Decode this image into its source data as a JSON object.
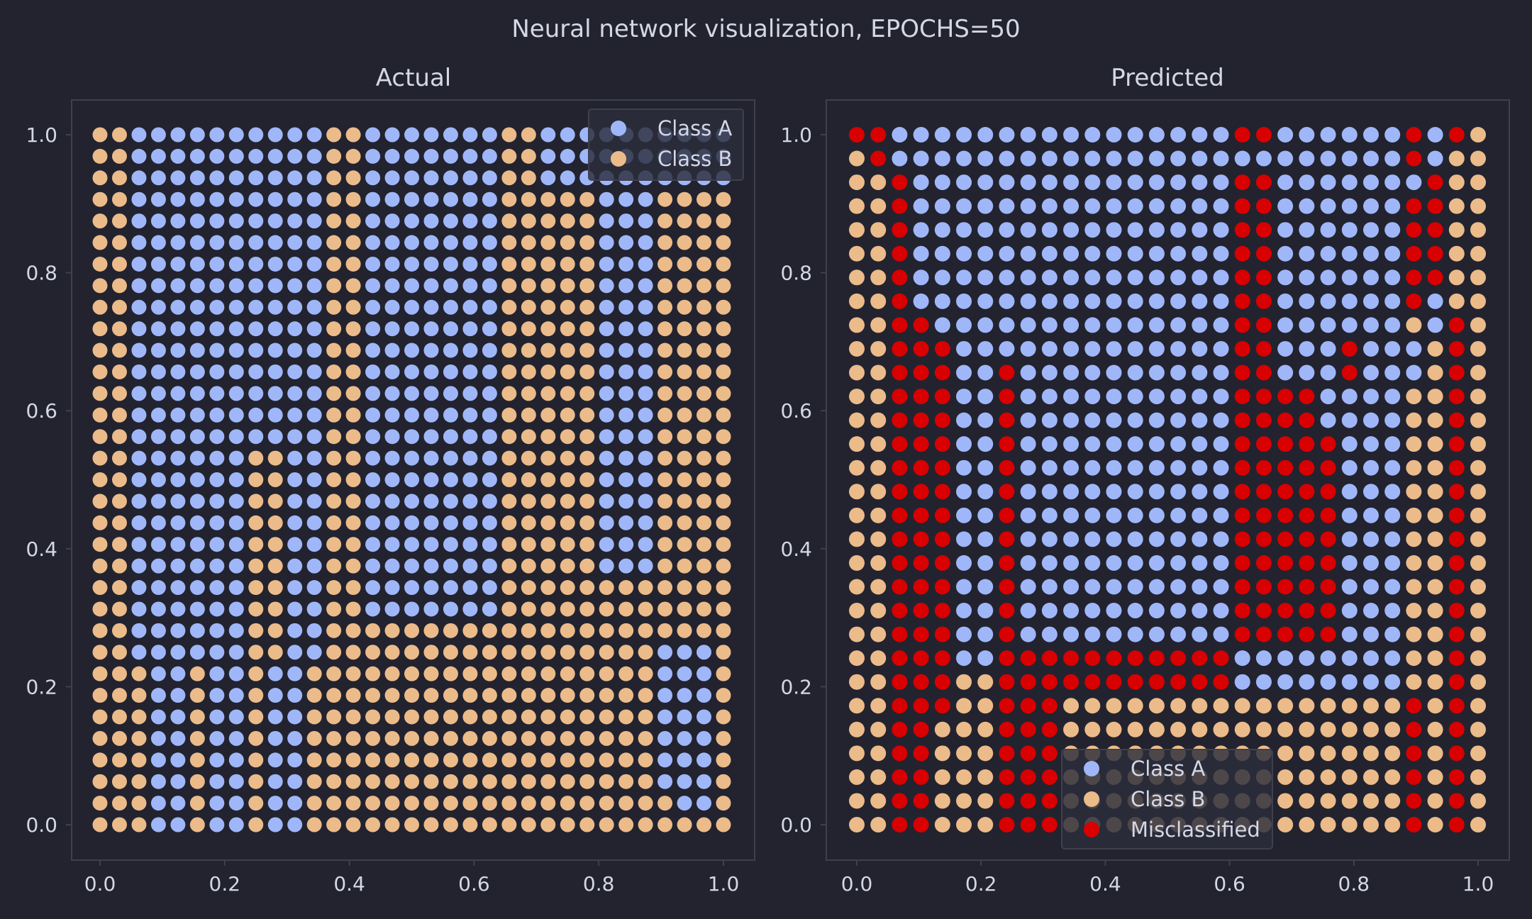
{
  "figure": {
    "suptitle": "Neural network visualization, EPOCHS=50"
  },
  "colors": {
    "background": "#22232f",
    "class_a": "#9fb7f9",
    "class_b": "#ecbb8a",
    "misclassified": "#d80000",
    "axes_frame": "#3e4050",
    "text": "#d4d7e6",
    "legend_face": "#2b2d3c"
  },
  "chart_data": [
    {
      "type": "scatter",
      "title": "Actual",
      "grid_n": 33,
      "xlim": [
        0,
        1
      ],
      "ylim": [
        0,
        1
      ],
      "xticks": [
        "0.0",
        "0.2",
        "0.4",
        "0.6",
        "0.8",
        "1.0"
      ],
      "yticks": [
        "0.0",
        "0.2",
        "0.4",
        "0.6",
        "0.8",
        "1.0"
      ],
      "grid": false,
      "legend": {
        "placement": "top-right",
        "entries": [
          "Class A",
          "Class B"
        ]
      },
      "series": [
        {
          "name": "Class A",
          "color_key": "class_a"
        },
        {
          "name": "Class B",
          "color_key": "class_b"
        }
      ],
      "point_value_code": "0 = Class A, 1 = Class B; rows listed from y=1.0 down to y=0.0, columns x=0.0 to x=1.0",
      "rows": [
        "110000000000110000000110000000000",
        "110000000000110000000110000000000",
        "110000000000110000000110000000000",
        "110000000000110000000111110001111",
        "110000000000110000000111110001111",
        "110000000000110000000111110001111",
        "110000000000110000000111110001111",
        "110000000000110000000111110001111",
        "110000000000110000000111110001111",
        "110000000000110000000111110001111",
        "110000000000110000000111110001111",
        "110000000000110000000111110001111",
        "110000000000110000000111110001111",
        "110000000000110000000111110001111",
        "110000000000110000000111110001111",
        "110000001100110000000111110001111",
        "110000001100110000000111110001111",
        "110000001100110000000111110001111",
        "110000001100110000000111110001111",
        "110000001100110000000111110001111",
        "110000001100110000000111110001111",
        "110000001100110000000111111111111",
        "110000001100110000000111111111111",
        "110000001100111111111111111111111",
        "110000001100111111111111111110001",
        "111001001001111111111111111110001",
        "111001001001111111111111111110001",
        "111001001001111111111111111110001",
        "111001001001111111111111111110001",
        "111001001001111111111111111110001",
        "111001001001111111111111111110001",
        "111001001001111111111111111111001",
        "111001001001111111111111111111111"
      ]
    },
    {
      "type": "scatter",
      "title": "Predicted",
      "grid_n": 30,
      "xlim": [
        0,
        1
      ],
      "ylim": [
        0,
        1
      ],
      "xticks": [
        "0.0",
        "0.2",
        "0.4",
        "0.6",
        "0.8",
        "1.0"
      ],
      "yticks": [
        "0.0",
        "0.2",
        "0.4",
        "0.6",
        "0.8",
        "1.0"
      ],
      "grid": false,
      "legend": {
        "placement": "bottom-center",
        "entries": [
          "Class A",
          "Class B",
          "Misclassified"
        ]
      },
      "series": [
        {
          "name": "Class A",
          "color_key": "class_a"
        },
        {
          "name": "Class B",
          "color_key": "class_b"
        },
        {
          "name": "Misclassified",
          "color_key": "misclassified"
        }
      ],
      "point_value_code": "0 = Class A, 1 = Class B, 2 = Misclassified; rows listed from y=1.0 down to y=0.0, columns x=0.0 to x=1.0",
      "rows": [
        "220000000000000000220000002021",
        "120000000000000000000000002011",
        "112000000000000000220000000211",
        "112000000000000000220000002211",
        "112000000000000000220000002211",
        "112000000000000000220000002211",
        "112000000000000000220000002211",
        "112000000000000000220000002011",
        "112200000000000000220000001021",
        "112220000000000000220002000121",
        "112220020000000000220002000121",
        "112220020000000000222200001121",
        "112220020000000000222200001121",
        "112220020000000000222220001121",
        "112220020000000000222220001121",
        "112220020000000000222220001121",
        "112220020000000000222220001121",
        "112220020000000000222220001121",
        "112220020000000000222220001121",
        "112220020000000000222220001121",
        "112220020000000000222220001121",
        "112220020000000000222220001121",
        "112220022222222222000000001121",
        "112221122222222222000000001121",
        "112221122211111111111111112121",
        "112211122211111111111111112121",
        "112211122211111111111111112121",
        "112211122211111111111111112121",
        "112211122211111111111111112121",
        "112211122211111111111111112121"
      ]
    }
  ]
}
